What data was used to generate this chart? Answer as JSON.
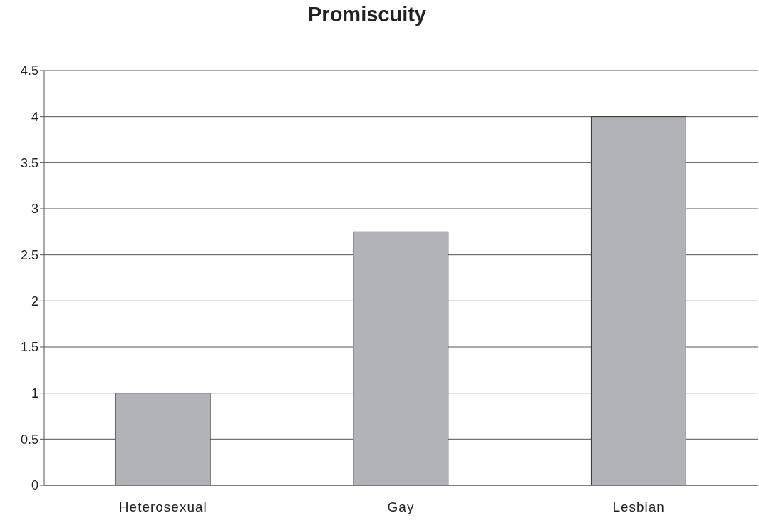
{
  "chart_data": {
    "type": "bar",
    "title": "Promiscuity",
    "categories": [
      "Heterosexual",
      "Gay",
      "Lesbian"
    ],
    "values": [
      1,
      2.75,
      4
    ],
    "color": "#b2b3b7",
    "ylim": [
      0,
      4.5
    ],
    "yticks": [
      0,
      0.5,
      1,
      1.5,
      2,
      2.5,
      3,
      3.5,
      4,
      4.5
    ],
    "grid": "y"
  }
}
